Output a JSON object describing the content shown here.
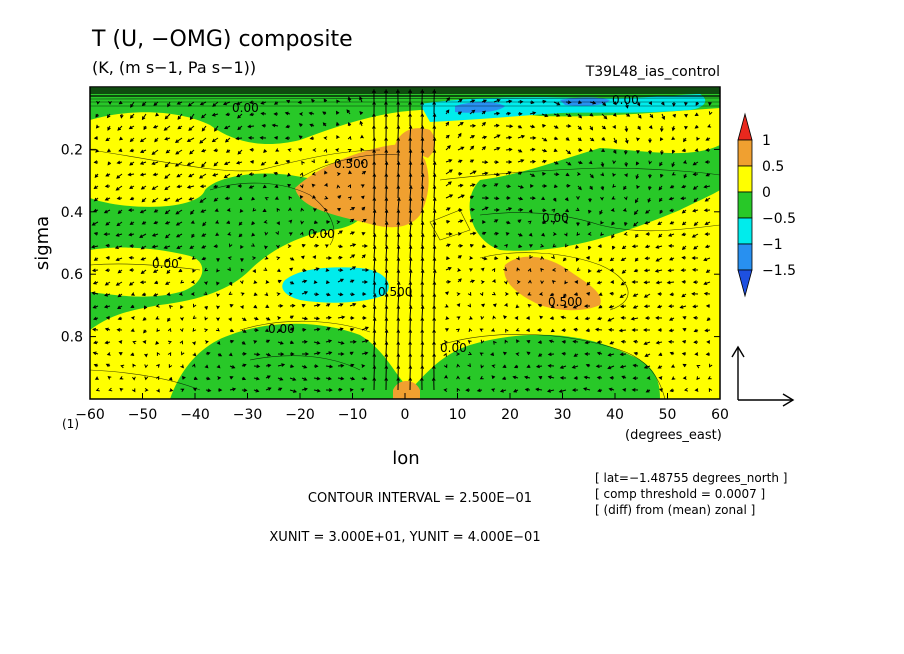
{
  "chart_data": {
    "type": "contour",
    "title": "T (U, −OMG) composite",
    "subtitle": "(K, (m s−1, Pa s−1))",
    "run_label": "T39L48_ias_control",
    "xlabel": "lon",
    "x_unit_label": "(degrees_east)",
    "ylabel": "sigma",
    "corner_label": "(1)",
    "xlim": [
      -60,
      60
    ],
    "ylim": [
      1.0,
      0.0
    ],
    "x_ticks": [
      -60,
      -50,
      -40,
      -30,
      -20,
      -10,
      0,
      10,
      20,
      30,
      40,
      50,
      60
    ],
    "y_ticks": [
      0.2,
      0.4,
      0.6,
      0.8
    ],
    "colorbar": {
      "labels": [
        "1",
        "0.5",
        "0",
        "−0.5",
        "−1",
        "−1.5"
      ],
      "levels": [
        1,
        0.5,
        0,
        -0.5,
        -1,
        -1.5
      ],
      "colors": [
        "#e8281e",
        "#f0a030",
        "#ffff00",
        "#28c828",
        "#00ecec",
        "#2890f0",
        "#1e50e0"
      ]
    },
    "contour_labels": [
      "0.500",
      "0.00",
      "0.00",
      "0.00",
      "0.500",
      "0.500",
      "0.00",
      "0.00",
      "0.00",
      "0.00"
    ],
    "notes": [
      "CONTOUR INTERVAL = 2.500E−01",
      "XUNIT = 3.000E+01, YUNIT = 4.000E−01"
    ],
    "info": [
      "[ lat=−1.48755 degrees_north ]",
      "[ comp threshold = 0.0007 ]",
      "[ (diff) from (mean) zonal ]"
    ]
  }
}
